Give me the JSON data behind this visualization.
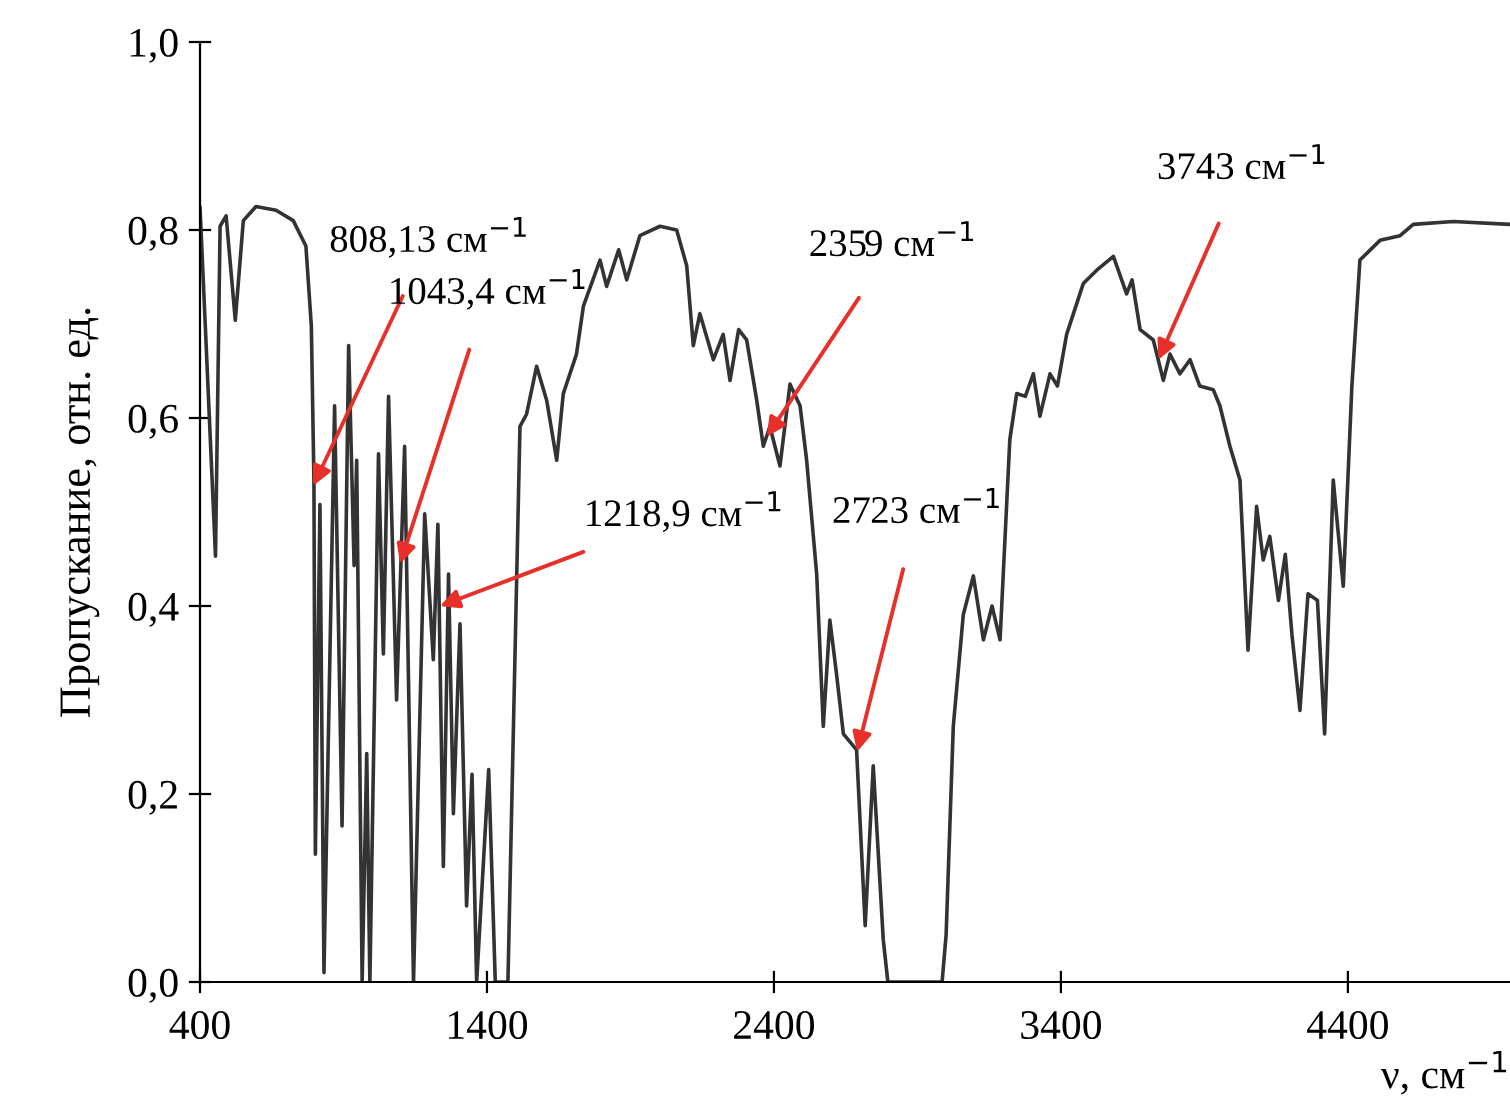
{
  "chart_data": {
    "type": "line",
    "xlabel": "ν, см$^{−1}$",
    "ylabel": "Пропускание, отн. ед.",
    "series": [
      {
        "color": "#333333",
        "x": [
          400,
          454,
          470,
          491,
          523,
          551,
          595,
          665,
          725,
          769,
          788,
          797,
          802,
          818,
          832,
          869,
          895,
          918,
          937,
          946,
          965,
          981,
          992,
          1022,
          1039,
          1057,
          1085,
          1113,
          1144,
          1183,
          1213,
          1229,
          1248,
          1266,
          1283,
          1306,
          1329,
          1348,
          1364,
          1406,
          1429,
          1452,
          1473,
          1515,
          1538,
          1573,
          1608,
          1643,
          1666,
          1712,
          1736,
          1794,
          1817,
          1859,
          1887,
          1933,
          2003,
          2061,
          2096,
          2119,
          2142,
          2189,
          2223,
          2247,
          2277,
          2305,
          2340,
          2363,
          2386,
          2421,
          2456,
          2491,
          2514,
          2549,
          2572,
          2595,
          2618,
          2642,
          2688,
          2718,
          2746,
          2781,
          2797,
          2986,
          3000,
          3025,
          3060,
          3095,
          3130,
          3160,
          3188,
          3222,
          3246,
          3276,
          3304,
          3327,
          3362,
          3388,
          3420,
          3478,
          3524,
          3583,
          3629,
          3648,
          3676,
          3722,
          3757,
          3780,
          3815,
          3850,
          3884,
          3931,
          3954,
          3989,
          4024,
          4052,
          4082,
          4105,
          4128,
          4158,
          4182,
          4205,
          4233,
          4261,
          4294,
          4319,
          4349,
          4384,
          4414,
          4442,
          4512,
          4582,
          4628,
          4767,
          4965
        ],
        "values": [
          0.825,
          0.453,
          0.804,
          0.815,
          0.704,
          0.81,
          0.825,
          0.821,
          0.81,
          0.783,
          0.698,
          0.534,
          0.136,
          0.508,
          0.01,
          0.613,
          0.166,
          0.677,
          0.443,
          0.555,
          0.0,
          0.243,
          0.0,
          0.562,
          0.349,
          0.623,
          0.3,
          0.57,
          0.0,
          0.498,
          0.343,
          0.487,
          0.123,
          0.434,
          0.179,
          0.381,
          0.081,
          0.221,
          0.0,
          0.226,
          0.0,
          0.0,
          0.0,
          0.591,
          0.604,
          0.655,
          0.619,
          0.555,
          0.626,
          0.668,
          0.719,
          0.768,
          0.74,
          0.779,
          0.747,
          0.794,
          0.804,
          0.8,
          0.762,
          0.677,
          0.711,
          0.662,
          0.689,
          0.64,
          0.694,
          0.683,
          0.619,
          0.57,
          0.591,
          0.549,
          0.636,
          0.613,
          0.555,
          0.434,
          0.272,
          0.385,
          0.328,
          0.264,
          0.247,
          0.06,
          0.23,
          0.045,
          0.0,
          0.0,
          0.05,
          0.272,
          0.391,
          0.432,
          0.364,
          0.4,
          0.364,
          0.577,
          0.626,
          0.623,
          0.647,
          0.602,
          0.647,
          0.634,
          0.689,
          0.743,
          0.757,
          0.772,
          0.732,
          0.747,
          0.694,
          0.683,
          0.64,
          0.668,
          0.647,
          0.662,
          0.634,
          0.63,
          0.613,
          0.57,
          0.534,
          0.353,
          0.506,
          0.449,
          0.474,
          0.406,
          0.455,
          0.37,
          0.289,
          0.413,
          0.406,
          0.264,
          0.534,
          0.421,
          0.634,
          0.768,
          0.789,
          0.794,
          0.806,
          0.809,
          0.806
        ]
      }
    ],
    "xlim": [
      400,
      4965
    ],
    "ylim": [
      0,
      1
    ],
    "xticks": [
      400,
      1400,
      2400,
      3400,
      4400
    ],
    "yticks": [
      {
        "value": 0,
        "label": "0,0"
      },
      {
        "value": 0.2,
        "label": "0,2"
      },
      {
        "value": 0.4,
        "label": "0,4"
      },
      {
        "value": 0.6,
        "label": "0,6"
      },
      {
        "value": 0.8,
        "label": "0,8"
      },
      {
        "value": 1,
        "label": "1,0"
      }
    ],
    "grid": false,
    "legend": false,
    "marker": "none",
    "line_style": "solid",
    "annotations": [
      {
        "text": "808,13 см$^{−1}$",
        "x": 795,
        "y": 0.528
      },
      {
        "text": "1043,4 см$^{−1}$",
        "x": 1097,
        "y": 0.445
      },
      {
        "text": "1218,9 см$^{−1}$",
        "x": 1236,
        "y": 0.4
      },
      {
        "text": "2359 см$^{−1}$",
        "x": 2375,
        "y": 0.58
      },
      {
        "text": "2723 см$^{−1}$",
        "x": 2690,
        "y": 0.245
      },
      {
        "text": "3743 см$^{−1}$",
        "x": 3740,
        "y": 0.662
      }
    ]
  }
}
